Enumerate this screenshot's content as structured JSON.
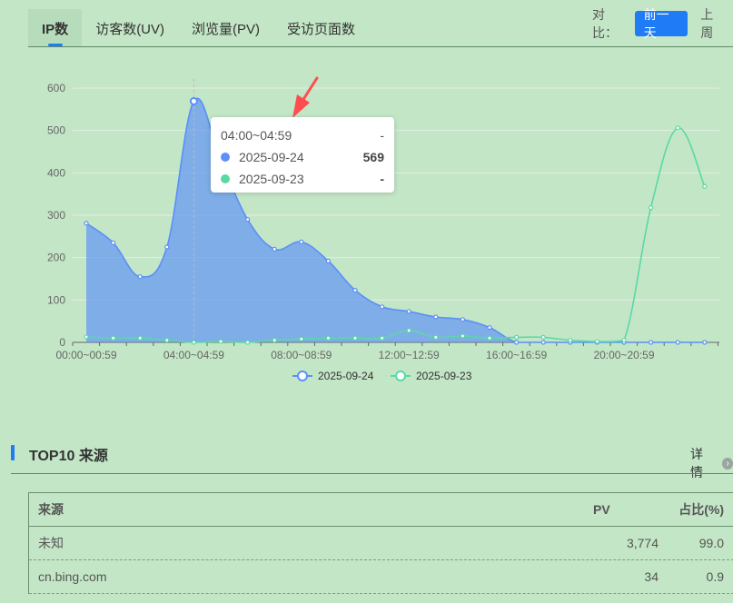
{
  "tabs": [
    {
      "label": "IP数",
      "active": true
    },
    {
      "label": "访客数(UV)",
      "active": false
    },
    {
      "label": "浏览量(PV)",
      "active": false
    },
    {
      "label": "受访页面数",
      "active": false
    }
  ],
  "compare": {
    "label": "对比：",
    "options": [
      {
        "label": "前一天",
        "active": true
      },
      {
        "label": "上周",
        "active": false
      }
    ]
  },
  "tooltip": {
    "title": "04:00~04:59",
    "title_val": "-",
    "rows": [
      {
        "name": "2025-09-24",
        "value": "569",
        "color": "#5b8ff9"
      },
      {
        "name": "2025-09-23",
        "value": "-",
        "color": "#5ad8a6"
      }
    ]
  },
  "chart_data": {
    "type": "line",
    "x": [
      "00:00~00:59",
      "01:00~01:59",
      "02:00~02:59",
      "03:00~03:59",
      "04:00~04:59",
      "05:00~05:59",
      "06:00~06:59",
      "07:00~07:59",
      "08:00~08:59",
      "09:00~09:59",
      "10:00~10:59",
      "11:00~11:59",
      "12:00~12:59",
      "13:00~13:59",
      "14:00~14:59",
      "15:00~15:59",
      "16:00~16:59",
      "17:00~17:59",
      "18:00~18:59",
      "19:00~19:59",
      "20:00~20:59",
      "21:00~21:59",
      "22:00~22:59",
      "23:00~23:59"
    ],
    "xticks": [
      "00:00~00:59",
      "04:00~04:59",
      "08:00~08:59",
      "12:00~12:59",
      "16:00~16:59",
      "20:00~20:59"
    ],
    "ylim": [
      0,
      600
    ],
    "yticks": [
      0,
      100,
      200,
      300,
      400,
      500,
      600
    ],
    "series": [
      {
        "name": "2025-09-24",
        "color": "#5b8ff9",
        "area": true,
        "values": [
          281,
          235,
          155,
          225,
          569,
          430,
          290,
          220,
          237,
          192,
          123,
          84,
          73,
          60,
          54,
          35,
          0,
          0,
          0,
          0,
          0,
          0,
          0,
          0
        ]
      },
      {
        "name": "2025-09-23",
        "color": "#5ad8a6",
        "area": false,
        "values": [
          13,
          10,
          10,
          5,
          0,
          2,
          0,
          5,
          8,
          10,
          10,
          10,
          28,
          12,
          15,
          10,
          12,
          12,
          5,
          2,
          5,
          318,
          506,
          368
        ]
      }
    ],
    "legend": "bottom",
    "grid": true
  },
  "section": {
    "title": "TOP10 来源",
    "details": "详情"
  },
  "table": {
    "headers": {
      "source": "来源",
      "pv": "PV",
      "pct": "占比(%)"
    },
    "rows": [
      {
        "source": "未知",
        "pv": "3,774",
        "pct": "99.0"
      },
      {
        "source": "cn.bing.com",
        "pv": "34",
        "pct": "0.9"
      }
    ]
  }
}
